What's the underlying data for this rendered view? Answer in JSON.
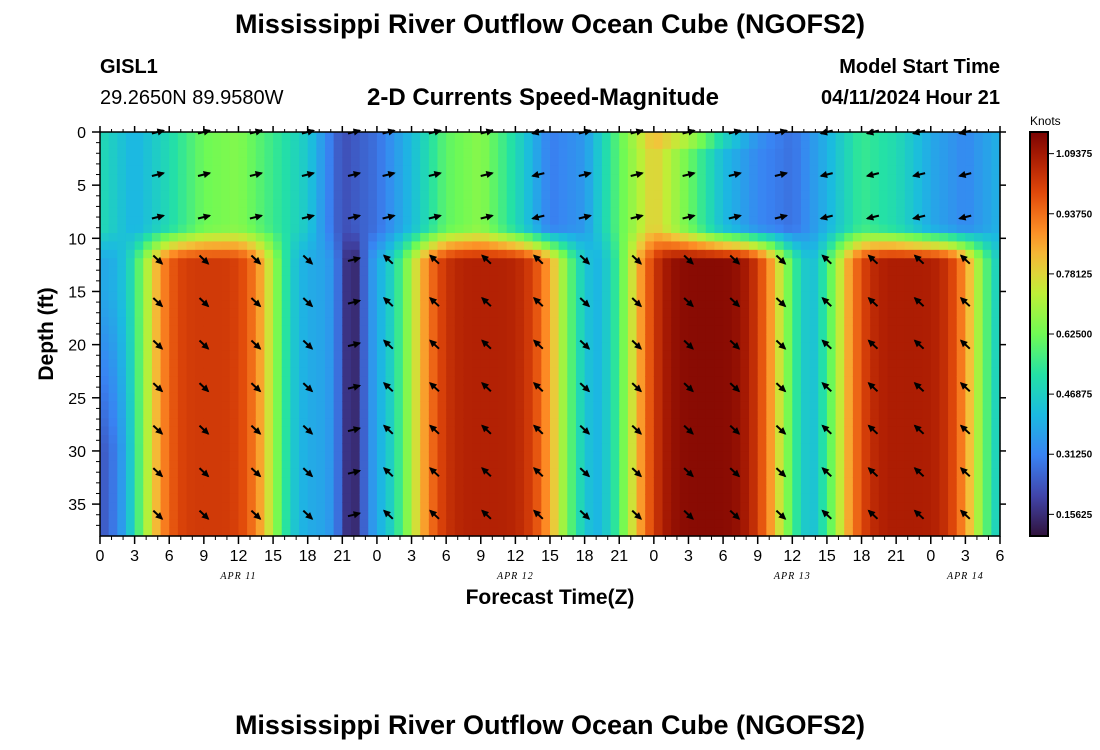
{
  "header": {
    "title": "Mississippi River Outflow Ocean Cube (NGOFS2)",
    "station": "GISL1",
    "coords": "29.2650N  89.9580W",
    "variable": "2-D Currents Speed-Magnitude",
    "model_start_label": "Model Start Time",
    "model_start_value": "04/11/2024 Hour 21"
  },
  "footer": {
    "title": "Mississippi River Outflow Ocean Cube (NGOFS2)"
  },
  "chart_data": {
    "type": "heatmap",
    "xlabel": "Forecast Time(Z)",
    "ylabel": "Depth (ft)",
    "x_units": "hours since 2024-04-11 00Z",
    "xlim": [
      0,
      78
    ],
    "ylim": [
      38,
      0
    ],
    "x_ticks": [
      0,
      3,
      6,
      9,
      12,
      15,
      18,
      21,
      24,
      27,
      30,
      33,
      36,
      39,
      42,
      45,
      48,
      51,
      54,
      57,
      60,
      63,
      66,
      69,
      72,
      75,
      78
    ],
    "x_tick_labels": [
      "0",
      "3",
      "6",
      "9",
      "12",
      "15",
      "18",
      "21",
      "0",
      "3",
      "6",
      "9",
      "12",
      "15",
      "18",
      "21",
      "0",
      "3",
      "6",
      "9",
      "12",
      "15",
      "18",
      "21",
      "0",
      "3",
      "6"
    ],
    "y_ticks": [
      0,
      5,
      10,
      15,
      20,
      25,
      30,
      35
    ],
    "y_tick_labels": [
      "0",
      "5",
      "10",
      "15",
      "20",
      "25",
      "30",
      "35"
    ],
    "date_labels": [
      {
        "x": 12,
        "text": "APR 11"
      },
      {
        "x": 36,
        "text": "APR 12"
      },
      {
        "x": 60,
        "text": "APR 13"
      },
      {
        "x": 75,
        "text": "APR 14"
      }
    ],
    "colorbar": {
      "units": "Knots",
      "vmin": 0.1,
      "vmax": 1.15,
      "ticks": [
        0.15625,
        0.3125,
        0.46875,
        0.625,
        0.78125,
        0.9375,
        1.09375
      ],
      "tick_labels": [
        "0.15625",
        "0.31250",
        "0.46875",
        "0.62500",
        "0.78125",
        "0.93750",
        "1.09375"
      ]
    },
    "speed_model": {
      "description": "Approximate current speed (knots) read from the colour field; lower layer (depth > 11 ft) follows lower_peaks, surface layer (depth < 9 ft) follows surface_profile.",
      "lower_peaks": [
        {
          "x": 9.5,
          "speed": 1.02,
          "half_width": 6
        },
        {
          "x": 33.5,
          "speed": 1.07,
          "half_width": 7
        },
        {
          "x": 52.5,
          "speed": 1.13,
          "half_width": 7
        },
        {
          "x": 70,
          "speed": 1.08,
          "half_width": 6.5
        }
      ],
      "surface_profile": {
        "x": [
          0,
          3,
          6,
          9,
          12,
          15,
          18,
          21,
          24,
          27,
          30,
          33,
          36,
          39,
          42,
          45,
          48,
          51,
          54,
          57,
          60,
          63,
          66,
          69,
          72,
          75,
          78
        ],
        "speed": [
          0.5,
          0.4,
          0.5,
          0.62,
          0.65,
          0.55,
          0.45,
          0.22,
          0.28,
          0.42,
          0.6,
          0.66,
          0.5,
          0.3,
          0.35,
          0.6,
          0.8,
          0.62,
          0.42,
          0.32,
          0.28,
          0.4,
          0.55,
          0.5,
          0.38,
          0.32,
          0.4
        ]
      }
    },
    "vectors": {
      "depths": [
        0,
        4,
        8,
        12,
        16,
        20,
        24,
        28,
        32,
        36
      ],
      "columns": [
        {
          "x": 5,
          "dir_upper": "E",
          "dir_lower": "SE"
        },
        {
          "x": 9,
          "dir_upper": "E",
          "dir_lower": "SE"
        },
        {
          "x": 13.5,
          "dir_upper": "E",
          "dir_lower": "SE"
        },
        {
          "x": 18,
          "dir_upper": "E",
          "dir_lower": "SE"
        },
        {
          "x": 22,
          "dir_upper": "E",
          "dir_lower": "E"
        },
        {
          "x": 25,
          "dir_upper": "E",
          "dir_lower": "NW"
        },
        {
          "x": 29,
          "dir_upper": "E",
          "dir_lower": "NW"
        },
        {
          "x": 33.5,
          "dir_upper": "E",
          "dir_lower": "NW"
        },
        {
          "x": 38,
          "dir_upper": "W",
          "dir_lower": "NW"
        },
        {
          "x": 42,
          "dir_upper": "E",
          "dir_lower": "SE"
        },
        {
          "x": 46.5,
          "dir_upper": "E",
          "dir_lower": "SE"
        },
        {
          "x": 51,
          "dir_upper": "E",
          "dir_lower": "SE"
        },
        {
          "x": 55,
          "dir_upper": "E",
          "dir_lower": "SE"
        },
        {
          "x": 59,
          "dir_upper": "E",
          "dir_lower": "SE"
        },
        {
          "x": 63,
          "dir_upper": "W",
          "dir_lower": "NW"
        },
        {
          "x": 67,
          "dir_upper": "W",
          "dir_lower": "NW"
        },
        {
          "x": 71,
          "dir_upper": "W",
          "dir_lower": "NW"
        },
        {
          "x": 75,
          "dir_upper": "W",
          "dir_lower": "NW"
        }
      ]
    }
  }
}
